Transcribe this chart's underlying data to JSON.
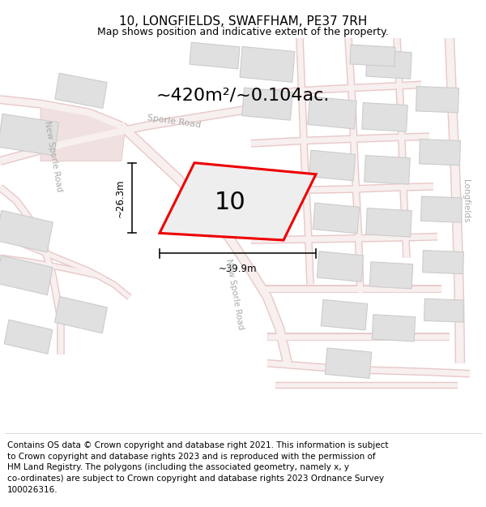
{
  "title": "10, LONGFIELDS, SWAFFHAM, PE37 7RH",
  "subtitle": "Map shows position and indicative extent of the property.",
  "area_text": "~420m²/~0.104ac.",
  "label_number": "10",
  "dim_width": "~39.9m",
  "dim_height": "~26.3m",
  "footer": "Contains OS data © Crown copyright and database right 2021. This information is subject to Crown copyright and database rights 2023 and is reproduced with the permission of HM Land Registry. The polygons (including the associated geometry, namely x, y co-ordinates) are subject to Crown copyright and database rights 2023 Ordnance Survey 100026316.",
  "bg_color": "#ffffff",
  "map_bg": "#ffffff",
  "road_fill": "#f5e8e8",
  "road_line": "#e8b8b8",
  "road_center": "#f9f0f0",
  "building_fill": "#e0e0e0",
  "building_edge": "#cccccc",
  "highlight_fill": "#eeeeee",
  "highlight_edge": "#ee0000",
  "road_label_color": "#aaaaaa",
  "dim_line_color": "#111111",
  "title_fontsize": 11,
  "subtitle_fontsize": 9,
  "area_fontsize": 16,
  "label_fontsize": 22,
  "footer_fontsize": 7.5,
  "road_lw": 1.2,
  "road_fill_lw": 8
}
